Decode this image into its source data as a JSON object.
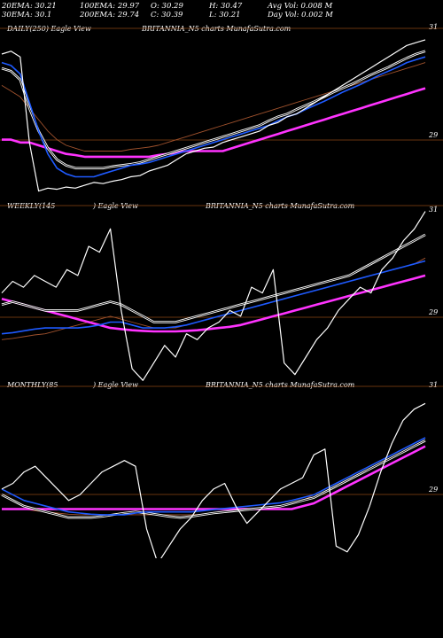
{
  "header": {
    "ema20": "20EMA: 30.21",
    "ema100": "100EMA: 29.97",
    "open": "O: 30.29",
    "high": "H: 30.47",
    "avgvol": "Avg Vol: 0.008 M",
    "ema30": "30EMA: 30.1",
    "ema200": "200EMA: 29.74",
    "close": "C: 30.39",
    "low": "L: 30.21",
    "dayvol": "Day Vol: 0.002 M"
  },
  "panels": [
    {
      "label": "DAILY(250) Eagle View",
      "title": "BRITANNIA_N5 charts MunafaSutra.com",
      "top_tick": "31",
      "mid_tick": "29"
    },
    {
      "label": "WEEKLY(145",
      "label2": ") Eagle View",
      "title": "BRITANNIA_N5 charts MunafaSutra.com",
      "top_tick": "31",
      "mid_tick": "29"
    },
    {
      "label": "MONTHLY(85",
      "label2": ") Eagle View",
      "title": "BRITANNIA_N5 charts MunafaSutra.com",
      "top_tick": "31",
      "mid_tick": "29"
    }
  ],
  "colors": {
    "price": "#ffffff",
    "ema_fast": "#ffffff",
    "ema_blue": "#1e5aff",
    "ema_magenta": "#ff33ff",
    "ema_brown": "#a0522d",
    "grid": "#8b4513"
  },
  "chart_data": [
    {
      "type": "line",
      "title": "BRITANNIA_N5 charts MunafaSutra.com",
      "ylim": [
        28.05,
        31.0
      ],
      "series": [
        {
          "name": "price",
          "values": [
            30.55,
            30.6,
            30.5,
            29.0,
            28.15,
            28.2,
            28.18,
            28.22,
            28.2,
            28.25,
            28.3,
            28.28,
            28.32,
            28.35,
            28.4,
            28.42,
            28.5,
            28.55,
            28.6,
            28.7,
            28.8,
            28.85,
            28.9,
            28.92,
            29.0,
            29.05,
            29.1,
            29.15,
            29.2,
            29.3,
            29.35,
            29.45,
            29.5,
            29.6,
            29.7,
            29.8,
            29.9,
            30.0,
            30.1,
            30.2,
            30.3,
            30.4,
            30.5,
            30.6,
            30.7,
            30.75,
            30.8
          ]
        },
        {
          "values": [
            30.3,
            30.25,
            30.1,
            29.6,
            29.2,
            28.9,
            28.7,
            28.6,
            28.55,
            28.55,
            28.55,
            28.55,
            28.58,
            28.6,
            28.62,
            28.65,
            28.7,
            28.75,
            28.8,
            28.85,
            28.9,
            28.95,
            29.0,
            29.05,
            29.1,
            29.15,
            29.2,
            29.25,
            29.3,
            29.38,
            29.45,
            29.5,
            29.58,
            29.65,
            29.72,
            29.8,
            29.88,
            29.95,
            30.02,
            30.1,
            30.18,
            30.25,
            30.32,
            30.4,
            30.48,
            30.55,
            30.6
          ]
        },
        {
          "values": [
            30.4,
            30.35,
            30.2,
            29.7,
            29.2,
            28.8,
            28.55,
            28.45,
            28.4,
            28.4,
            28.4,
            28.45,
            28.5,
            28.55,
            28.6,
            28.62,
            28.65,
            28.7,
            28.75,
            28.8,
            28.85,
            28.9,
            28.95,
            29.0,
            29.05,
            29.1,
            29.15,
            29.2,
            29.25,
            29.3,
            29.38,
            29.45,
            29.5,
            29.58,
            29.65,
            29.72,
            29.8,
            29.88,
            29.95,
            30.02,
            30.1,
            30.18,
            30.25,
            30.32,
            30.4,
            30.45,
            30.5
          ]
        },
        {
          "values": [
            29.05,
            29.05,
            29.0,
            29.0,
            28.95,
            28.9,
            28.85,
            28.8,
            28.78,
            28.75,
            28.75,
            28.75,
            28.75,
            28.75,
            28.75,
            28.75,
            28.75,
            28.78,
            28.8,
            28.82,
            28.85,
            28.85,
            28.85,
            28.85,
            28.85,
            28.9,
            28.95,
            29.0,
            29.05,
            29.1,
            29.15,
            29.2,
            29.25,
            29.3,
            29.35,
            29.4,
            29.45,
            29.5,
            29.55,
            29.6,
            29.65,
            29.7,
            29.75,
            29.8,
            29.85,
            29.9,
            29.95
          ]
        },
        {
          "values": [
            30.0,
            29.9,
            29.8,
            29.6,
            29.4,
            29.2,
            29.05,
            28.95,
            28.9,
            28.85,
            28.85,
            28.85,
            28.85,
            28.85,
            28.88,
            28.9,
            28.92,
            28.95,
            29.0,
            29.05,
            29.1,
            29.15,
            29.2,
            29.25,
            29.3,
            29.35,
            29.4,
            29.45,
            29.5,
            29.55,
            29.6,
            29.65,
            29.7,
            29.75,
            29.8,
            29.85,
            29.9,
            29.95,
            30.0,
            30.05,
            30.1,
            30.15,
            30.2,
            30.25,
            30.3,
            30.35,
            30.4
          ]
        }
      ]
    },
    {
      "type": "line",
      "title": "BRITANNIA_N5 charts MunafaSutra.com",
      "ylim": [
        28.05,
        31.0
      ],
      "series": [
        {
          "name": "price",
          "values": [
            29.5,
            29.7,
            29.6,
            29.8,
            29.7,
            29.6,
            29.9,
            29.8,
            30.3,
            30.2,
            30.6,
            29.2,
            28.2,
            28.0,
            28.3,
            28.6,
            28.4,
            28.8,
            28.7,
            28.9,
            29.0,
            29.2,
            29.1,
            29.6,
            29.5,
            29.9,
            28.3,
            28.1,
            28.4,
            28.7,
            28.9,
            29.2,
            29.4,
            29.6,
            29.5,
            29.9,
            30.1,
            30.4,
            30.6,
            30.9
          ]
        },
        {
          "values": [
            29.3,
            29.35,
            29.3,
            29.25,
            29.2,
            29.2,
            29.2,
            29.2,
            29.25,
            29.3,
            29.35,
            29.3,
            29.2,
            29.1,
            29.0,
            29.0,
            29.0,
            29.05,
            29.1,
            29.15,
            29.2,
            29.25,
            29.3,
            29.35,
            29.4,
            29.45,
            29.5,
            29.55,
            29.6,
            29.65,
            29.7,
            29.75,
            29.8,
            29.9,
            30.0,
            30.1,
            30.2,
            30.3,
            30.4,
            30.5
          ]
        },
        {
          "values": [
            28.8,
            28.82,
            28.85,
            28.88,
            28.9,
            28.9,
            28.9,
            28.9,
            28.92,
            28.95,
            29.0,
            29.0,
            28.95,
            28.9,
            28.9,
            28.9,
            28.92,
            28.95,
            29.0,
            29.05,
            29.1,
            29.15,
            29.2,
            29.25,
            29.3,
            29.35,
            29.4,
            29.45,
            29.5,
            29.55,
            29.6,
            29.65,
            29.7,
            29.75,
            29.8,
            29.85,
            29.9,
            29.95,
            30.0,
            30.05
          ]
        },
        {
          "values": [
            29.4,
            29.35,
            29.3,
            29.25,
            29.2,
            29.15,
            29.1,
            29.05,
            29.0,
            28.95,
            28.9,
            28.88,
            28.86,
            28.85,
            28.84,
            28.84,
            28.84,
            28.85,
            28.86,
            28.88,
            28.9,
            28.92,
            28.95,
            29.0,
            29.05,
            29.1,
            29.15,
            29.2,
            29.25,
            29.3,
            29.35,
            29.4,
            29.45,
            29.5,
            29.55,
            29.6,
            29.65,
            29.7,
            29.75,
            29.8
          ]
        },
        {
          "values": [
            28.7,
            28.72,
            28.75,
            28.78,
            28.8,
            28.85,
            28.9,
            28.95,
            29.0,
            29.05,
            29.1,
            29.05,
            29.0,
            28.95,
            28.9,
            28.9,
            28.9,
            28.95,
            29.0,
            29.05,
            29.1,
            29.15,
            29.2,
            29.25,
            29.3,
            29.35,
            29.4,
            29.45,
            29.5,
            29.55,
            29.6,
            29.65,
            29.7,
            29.75,
            29.8,
            29.85,
            29.9,
            29.95,
            30.0,
            30.1
          ]
        }
      ]
    },
    {
      "type": "line",
      "title": "BRITANNIA_N5 charts MunafaSutra.com",
      "ylim": [
        28.05,
        31.0
      ],
      "series": [
        {
          "name": "price",
          "values": [
            29.2,
            29.3,
            29.5,
            29.6,
            29.4,
            29.2,
            29.0,
            29.1,
            29.3,
            29.5,
            29.6,
            29.7,
            29.6,
            28.5,
            27.9,
            28.2,
            28.5,
            28.7,
            29.0,
            29.2,
            29.3,
            28.9,
            28.6,
            28.8,
            29.0,
            29.2,
            29.3,
            29.4,
            29.8,
            29.9,
            28.2,
            28.1,
            28.4,
            28.9,
            29.5,
            30.0,
            30.4,
            30.6,
            30.7
          ]
        },
        {
          "values": [
            29.1,
            29.0,
            28.9,
            28.85,
            28.8,
            28.75,
            28.7,
            28.7,
            28.7,
            28.72,
            28.75,
            28.78,
            28.8,
            28.78,
            28.75,
            28.72,
            28.7,
            28.72,
            28.75,
            28.78,
            28.8,
            28.82,
            28.84,
            28.86,
            28.88,
            28.9,
            28.95,
            29.0,
            29.05,
            29.15,
            29.25,
            29.35,
            29.45,
            29.55,
            29.65,
            29.75,
            29.85,
            29.95,
            30.05
          ]
        },
        {
          "values": [
            29.2,
            29.1,
            29.0,
            28.95,
            28.9,
            28.85,
            28.8,
            28.78,
            28.76,
            28.75,
            28.75,
            28.75,
            28.78,
            28.8,
            28.8,
            28.8,
            28.8,
            28.8,
            28.82,
            28.84,
            28.86,
            28.88,
            28.9,
            28.92,
            28.94,
            28.96,
            29.0,
            29.05,
            29.1,
            29.2,
            29.3,
            29.4,
            29.5,
            29.6,
            29.7,
            29.8,
            29.9,
            30.0,
            30.1
          ]
        },
        {
          "values": [
            28.85,
            28.85,
            28.85,
            28.85,
            28.85,
            28.85,
            28.85,
            28.85,
            28.85,
            28.85,
            28.85,
            28.85,
            28.85,
            28.85,
            28.85,
            28.85,
            28.85,
            28.85,
            28.85,
            28.85,
            28.85,
            28.85,
            28.85,
            28.85,
            28.85,
            28.85,
            28.85,
            28.9,
            28.95,
            29.05,
            29.15,
            29.25,
            29.35,
            29.45,
            29.55,
            29.65,
            29.75,
            29.85,
            29.95
          ]
        },
        {
          "values": [
            28.85,
            28.85,
            28.85,
            28.82,
            28.8,
            28.78,
            28.76,
            28.75,
            28.75,
            28.75,
            28.75,
            28.75,
            28.75,
            28.75,
            28.75,
            28.75,
            28.75,
            28.75,
            28.76,
            28.78,
            28.8,
            28.82,
            28.84,
            28.86,
            28.88,
            28.9,
            28.95,
            29.0,
            29.1,
            29.2,
            29.3,
            29.4,
            29.5,
            29.6,
            29.7,
            29.8,
            29.9,
            30.0,
            30.1
          ]
        }
      ]
    }
  ]
}
